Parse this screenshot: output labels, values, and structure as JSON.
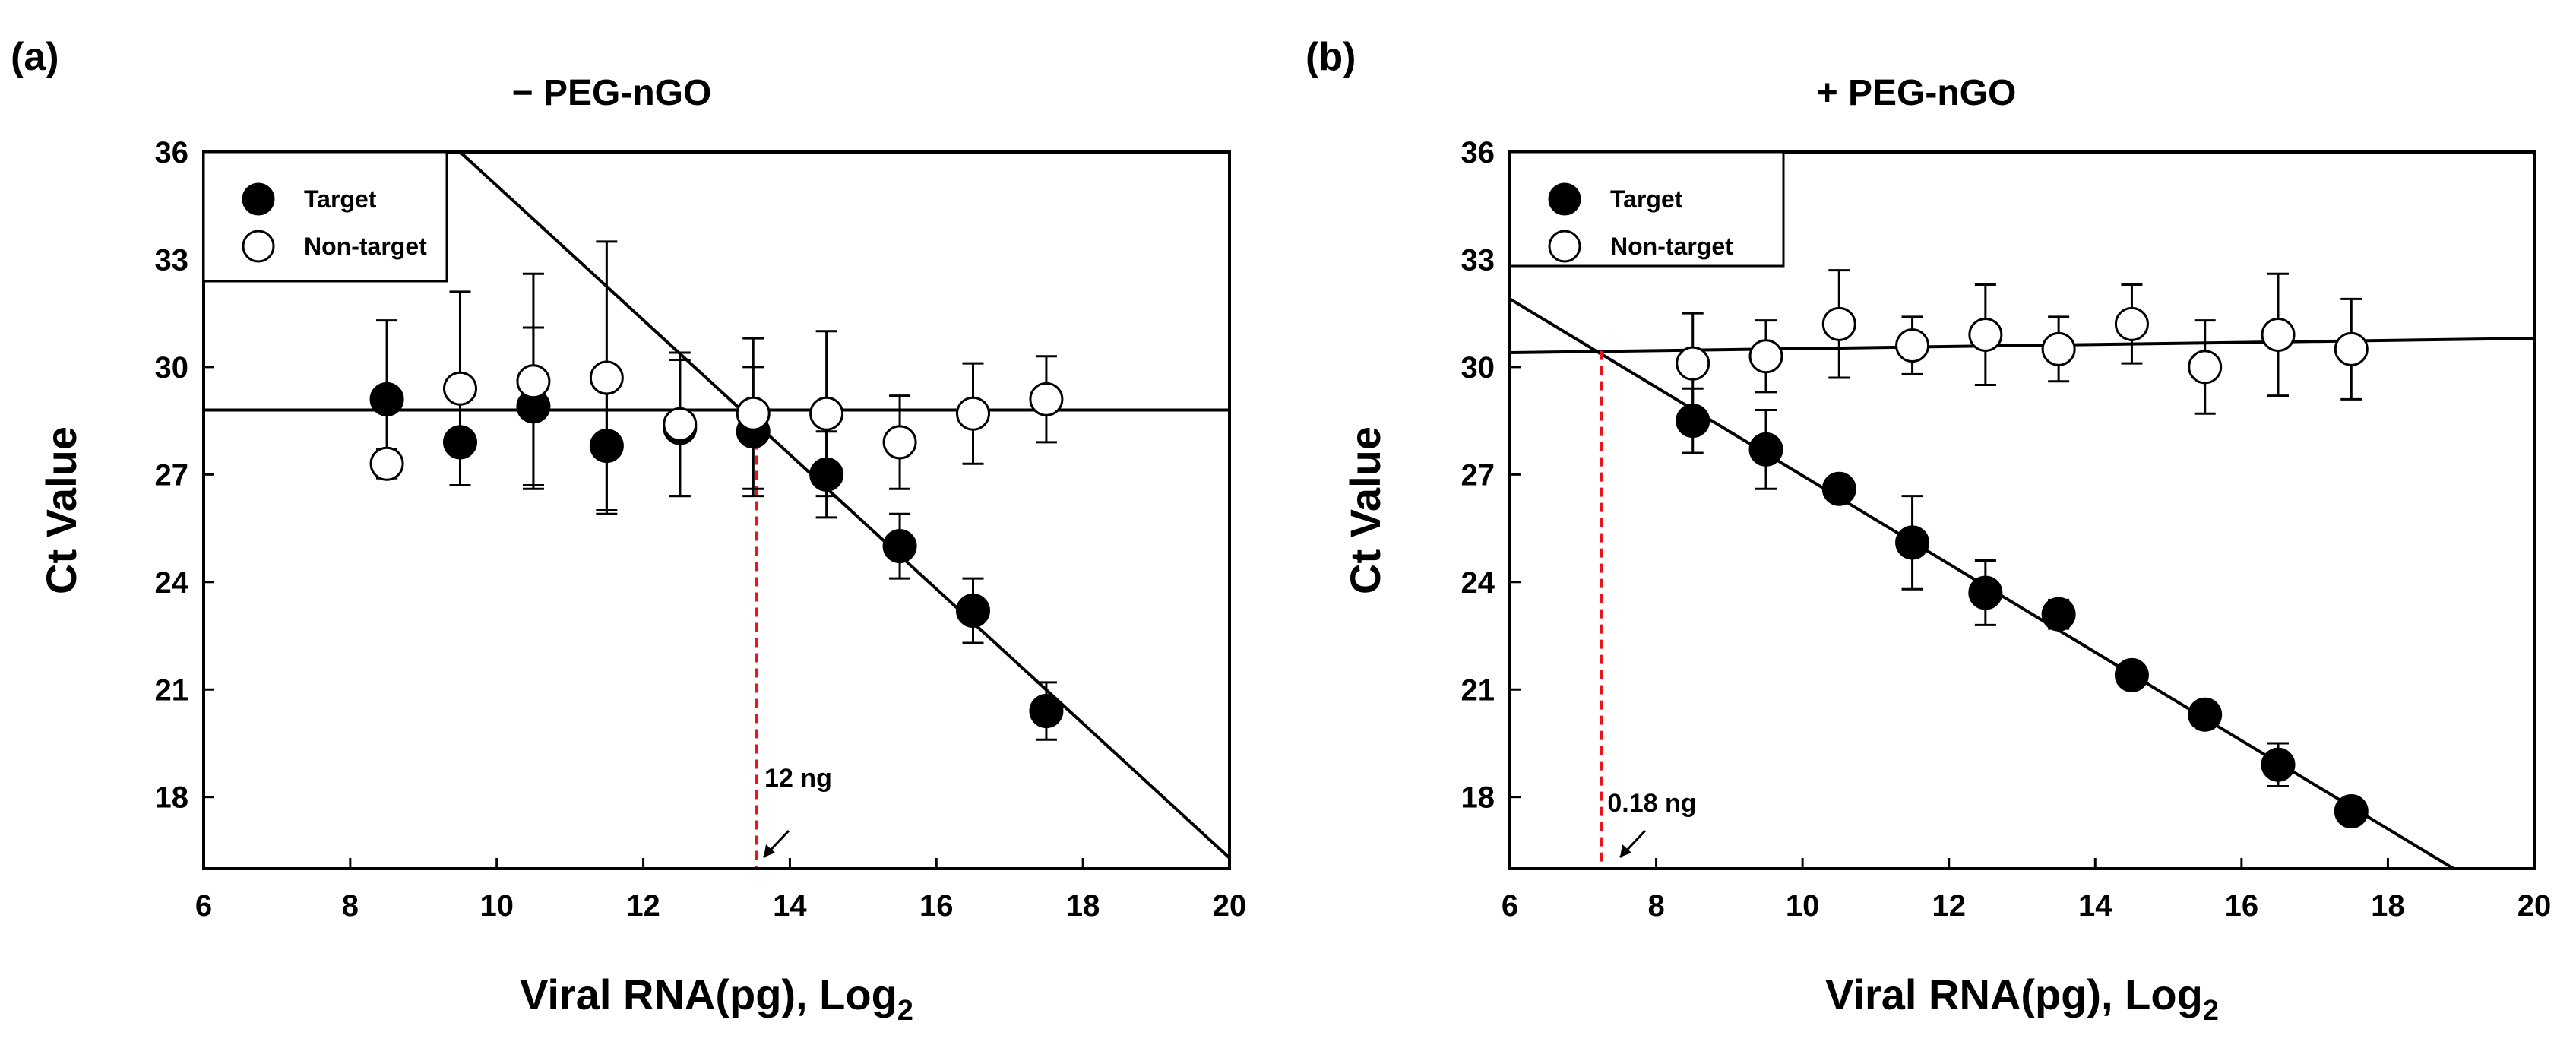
{
  "chart_data": [
    {
      "type": "scatter",
      "panel_label": "(a)",
      "title": "− PEG-nGO",
      "xlabel": "Viral RNA(pg), Log",
      "xlabel_sub": "2",
      "ylabel": "Ct Value",
      "xlim": [
        6,
        20
      ],
      "ylim": [
        16,
        36
      ],
      "xticks": [
        6,
        8,
        10,
        12,
        14,
        16,
        18,
        20
      ],
      "yticks": [
        18,
        21,
        24,
        27,
        30,
        33,
        36
      ],
      "legend_position": "top-left",
      "series": [
        {
          "name": "Target",
          "marker": "filled",
          "x": [
            8.5,
            9.5,
            10.5,
            11.5,
            12.5,
            13.5,
            14.5,
            15.5,
            16.5,
            17.5
          ],
          "y": [
            29.1,
            27.9,
            28.9,
            27.8,
            28.3,
            28.2,
            27.0,
            25.0,
            23.2,
            20.4
          ],
          "err": [
            2.2,
            1.2,
            2.2,
            1.8,
            1.9,
            1.8,
            1.2,
            0.9,
            0.9,
            0.8
          ]
        },
        {
          "name": "Non-target",
          "marker": "open",
          "x": [
            8.5,
            9.5,
            10.5,
            11.5,
            12.5,
            13.5,
            14.5,
            15.5,
            16.5,
            17.5
          ],
          "y": [
            27.3,
            29.4,
            29.6,
            29.7,
            28.4,
            28.7,
            28.7,
            27.9,
            28.7,
            29.1
          ],
          "err": [
            0.4,
            2.7,
            3.0,
            3.8,
            2.0,
            2.1,
            2.3,
            1.3,
            1.4,
            1.2
          ]
        }
      ],
      "fit_lines": [
        {
          "name": "Target fit",
          "x": [
            9.5,
            20
          ],
          "y": [
            36,
            16.3
          ]
        },
        {
          "name": "Non-target fit",
          "x": [
            6,
            20
          ],
          "y": [
            28.8,
            28.8
          ]
        }
      ],
      "annotation": {
        "text": "12 ng",
        "x": 13.55,
        "y_intersect": 28.8
      }
    },
    {
      "type": "scatter",
      "panel_label": "(b)",
      "title": "+ PEG-nGO",
      "xlabel": "Viral RNA(pg), Log",
      "xlabel_sub": "2",
      "ylabel": "Ct Value",
      "xlim": [
        6,
        20
      ],
      "ylim": [
        16,
        36
      ],
      "xticks": [
        6,
        8,
        10,
        12,
        14,
        16,
        18,
        20
      ],
      "yticks": [
        18,
        21,
        24,
        27,
        30,
        33,
        36
      ],
      "legend_position": "top-left",
      "series": [
        {
          "name": "Target",
          "marker": "filled",
          "x": [
            8.5,
            9.5,
            10.5,
            11.5,
            12.5,
            13.5,
            14.5,
            15.5,
            16.5,
            17.5
          ],
          "y": [
            28.5,
            27.7,
            26.6,
            25.1,
            23.7,
            23.1,
            21.4,
            20.3,
            18.9,
            17.6
          ],
          "err": [
            0.9,
            1.1,
            0.3,
            1.3,
            0.9,
            0.4,
            0.2,
            0.2,
            0.6,
            0.2
          ]
        },
        {
          "name": "Non-target",
          "marker": "open",
          "x": [
            8.5,
            9.5,
            10.5,
            11.5,
            12.5,
            13.5,
            14.5,
            15.5,
            16.5,
            17.5
          ],
          "y": [
            30.1,
            30.3,
            31.2,
            30.6,
            30.9,
            30.5,
            31.2,
            30.0,
            30.9,
            30.5
          ],
          "err": [
            1.4,
            1.0,
            1.5,
            0.8,
            1.4,
            0.9,
            1.1,
            1.3,
            1.7,
            1.4
          ]
        }
      ],
      "fit_lines": [
        {
          "name": "Target fit",
          "x": [
            6,
            18.9
          ],
          "y": [
            31.9,
            16
          ]
        },
        {
          "name": "Non-target fit",
          "x": [
            6,
            20
          ],
          "y": [
            30.4,
            30.8
          ]
        }
      ],
      "annotation": {
        "text": "0.18 ng",
        "x": 7.25,
        "y_intersect": 30.45
      }
    }
  ]
}
